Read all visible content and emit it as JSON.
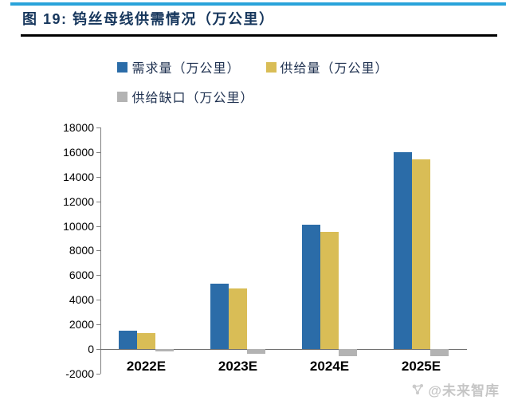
{
  "header": {
    "title": "图 19: 钨丝母线供需情况（万公里）"
  },
  "watermark": {
    "icon": "network-logo-icon",
    "text": "@未来智库"
  },
  "colors": {
    "top_rule": "#29A3DA",
    "title_text": "#16365C",
    "title_underline": "#000000",
    "axis_line": "#7F7F7F",
    "demand_blue": "#2B6CA8",
    "supply_yellow": "#D9BD56",
    "gap_gray": "#B3B3B3"
  },
  "chart_data": {
    "type": "bar",
    "title": "钨丝母线供需情况（万公里）",
    "categories": [
      "2022E",
      "2023E",
      "2024E",
      "2025E"
    ],
    "series": [
      {
        "name": "需求量（万公里）",
        "color": "#2B6CA8",
        "values": [
          1500,
          5300,
          10100,
          16000
        ]
      },
      {
        "name": "供给量（万公里）",
        "color": "#D9BD56",
        "values": [
          1300,
          4900,
          9500,
          15400
        ]
      },
      {
        "name": "供给缺口（万公里）",
        "color": "#B3B3B3",
        "values": [
          -200,
          -400,
          -600,
          -600
        ]
      }
    ],
    "xlabel": "",
    "ylabel": "",
    "ylim": [
      -2000,
      18000
    ],
    "y_ticks": [
      18000,
      16000,
      14000,
      12000,
      10000,
      8000,
      6000,
      4000,
      2000,
      0,
      -2000
    ],
    "grid": false,
    "legend_position": "top",
    "legend_rows": [
      [
        0,
        1
      ],
      [
        2
      ]
    ]
  }
}
